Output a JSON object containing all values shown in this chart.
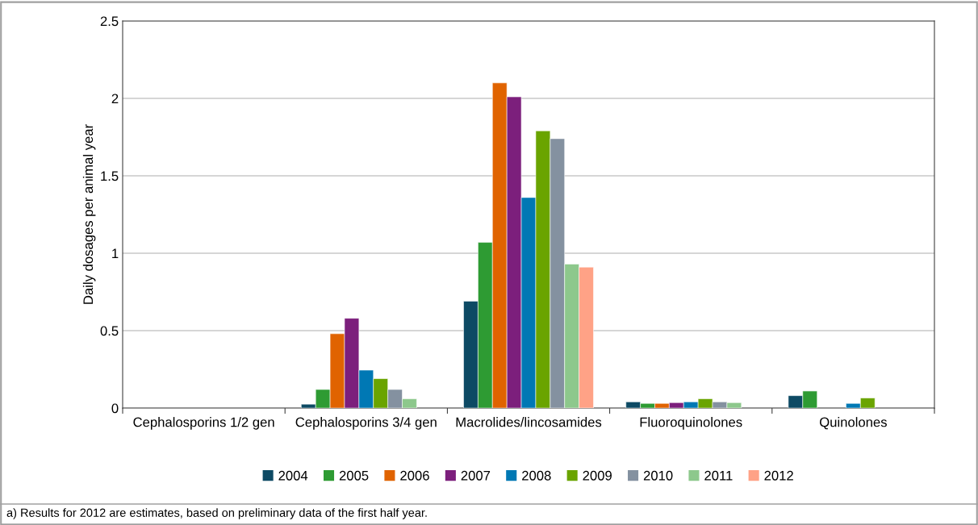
{
  "chart_data": {
    "type": "bar",
    "ylabel": "Daily dosages per animal year",
    "categories": [
      "Cephalosporins 1/2 gen",
      "Cephalosporins 3/4 gen",
      "Macrolides/lincosamides",
      "Fluoroquinolones",
      "Quinolones"
    ],
    "series": [
      {
        "name": "2004",
        "color": "#0d4a64",
        "values": [
          null,
          0.025,
          0.69,
          0.04,
          0.08
        ]
      },
      {
        "name": "2005",
        "color": "#2e9b33",
        "values": [
          null,
          0.12,
          1.07,
          0.03,
          0.11
        ]
      },
      {
        "name": "2006",
        "color": "#e06300",
        "values": [
          null,
          0.48,
          2.1,
          0.03,
          null
        ]
      },
      {
        "name": "2007",
        "color": "#7c1f7c",
        "values": [
          null,
          0.58,
          2.01,
          0.035,
          null
        ]
      },
      {
        "name": "2008",
        "color": "#0078b4",
        "values": [
          null,
          0.245,
          1.36,
          0.04,
          0.03
        ]
      },
      {
        "name": "2009",
        "color": "#6aa400",
        "values": [
          null,
          0.19,
          1.79,
          0.06,
          0.065
        ]
      },
      {
        "name": "2010",
        "color": "#8491a0",
        "values": [
          null,
          0.12,
          1.74,
          0.04,
          null
        ]
      },
      {
        "name": "2011",
        "color": "#8dc88c",
        "values": [
          null,
          0.06,
          0.93,
          0.035,
          null
        ]
      },
      {
        "name": "2012",
        "color": "#ffa286",
        "values": [
          null,
          null,
          0.91,
          null,
          null
        ]
      }
    ],
    "ylim": [
      0,
      2.5
    ],
    "yticks": [
      0,
      0.5,
      1,
      1.5,
      2,
      2.5
    ],
    "grid": "y",
    "legend": "bottom",
    "annotations": [
      "a) Results for 2012 are estimates, based on preliminary data of the first half year."
    ]
  }
}
